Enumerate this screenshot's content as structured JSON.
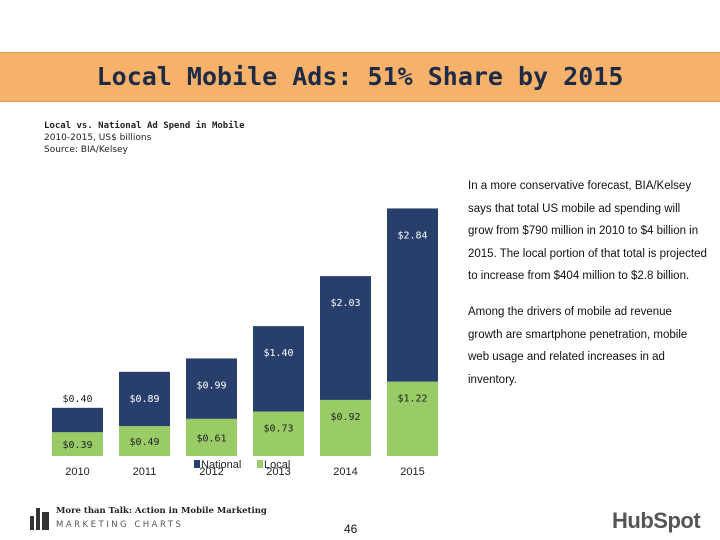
{
  "slide": {
    "title": "Local Mobile Ads: 51% Share by 2015",
    "chart_title": "Local vs. National Ad Spend in Mobile",
    "chart_subtitle": "2010-2015, US$ billions",
    "source": "Source: BIA/Kelsey",
    "note_p1": "In a more conservative forecast, BIA/Kelsey says that total US mobile ad spending will grow from $790 million in 2010 to $4 billion in 2015. The local portion of that total is projected to increase from $404 million to $2.8 billion.",
    "note_p2": "Among the drivers of mobile ad revenue growth are smartphone penetration, mobile web usage and related increases in ad inventory.",
    "footer_line1": "More than Talk: Action in Mobile Marketing",
    "footer_line2": "MARKETING CHARTS",
    "page_number": "46",
    "logo_text": "HubSpot"
  },
  "chart_data": {
    "type": "bar",
    "stacked": true,
    "categories": [
      "2010",
      "2011",
      "2012",
      "2013",
      "2014",
      "2015"
    ],
    "series": [
      {
        "name": "Local",
        "color": "#99cc66",
        "values": [
          0.39,
          0.49,
          0.61,
          0.73,
          0.92,
          1.22
        ],
        "labels": [
          "$0.39",
          "$0.49",
          "$0.61",
          "$0.73",
          "$0.92",
          "$1.22"
        ]
      },
      {
        "name": "National",
        "color": "#283f6b",
        "values": [
          0.4,
          0.89,
          0.99,
          1.4,
          2.03,
          2.84
        ],
        "labels": [
          "$0.40",
          "$0.89",
          "$0.99",
          "$1.40",
          "$2.03",
          "$2.84"
        ]
      }
    ],
    "legend": [
      "National",
      "Local"
    ],
    "legend_position": "bottom",
    "ylim": [
      0,
      4.1
    ],
    "grid": false
  }
}
